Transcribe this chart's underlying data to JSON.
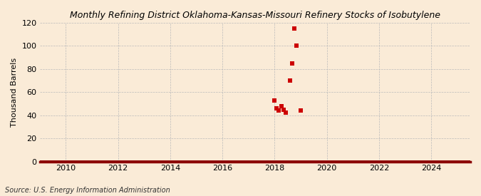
{
  "title": "Monthly Refining District Oklahoma-Kansas-Missouri Refinery Stocks of Isobutylene",
  "ylabel": "Thousand Barrels",
  "source": "Source: U.S. Energy Information Administration",
  "background_color": "#faebd7",
  "plot_background_color": "#faebd7",
  "grid_color": "#bbbbbb",
  "marker_color": "#cc0000",
  "line_color": "#8b0000",
  "xlim_start": 2009.0,
  "xlim_end": 2025.5,
  "ylim": [
    0,
    120
  ],
  "yticks": [
    0,
    20,
    40,
    60,
    80,
    100,
    120
  ],
  "xticks": [
    2010,
    2012,
    2014,
    2016,
    2018,
    2020,
    2022,
    2024
  ],
  "data_x": [
    2018.0,
    2018.083,
    2018.167,
    2018.25,
    2018.333,
    2018.417,
    2018.583,
    2018.667,
    2018.75,
    2018.833,
    2019.0
  ],
  "data_y": [
    53,
    46,
    44,
    48,
    45,
    42,
    70,
    85,
    115,
    100,
    44
  ],
  "title_fontsize": 9,
  "tick_fontsize": 8,
  "ylabel_fontsize": 8,
  "source_fontsize": 7,
  "marker_size": 15,
  "bottom_line_linewidth": 3.5
}
